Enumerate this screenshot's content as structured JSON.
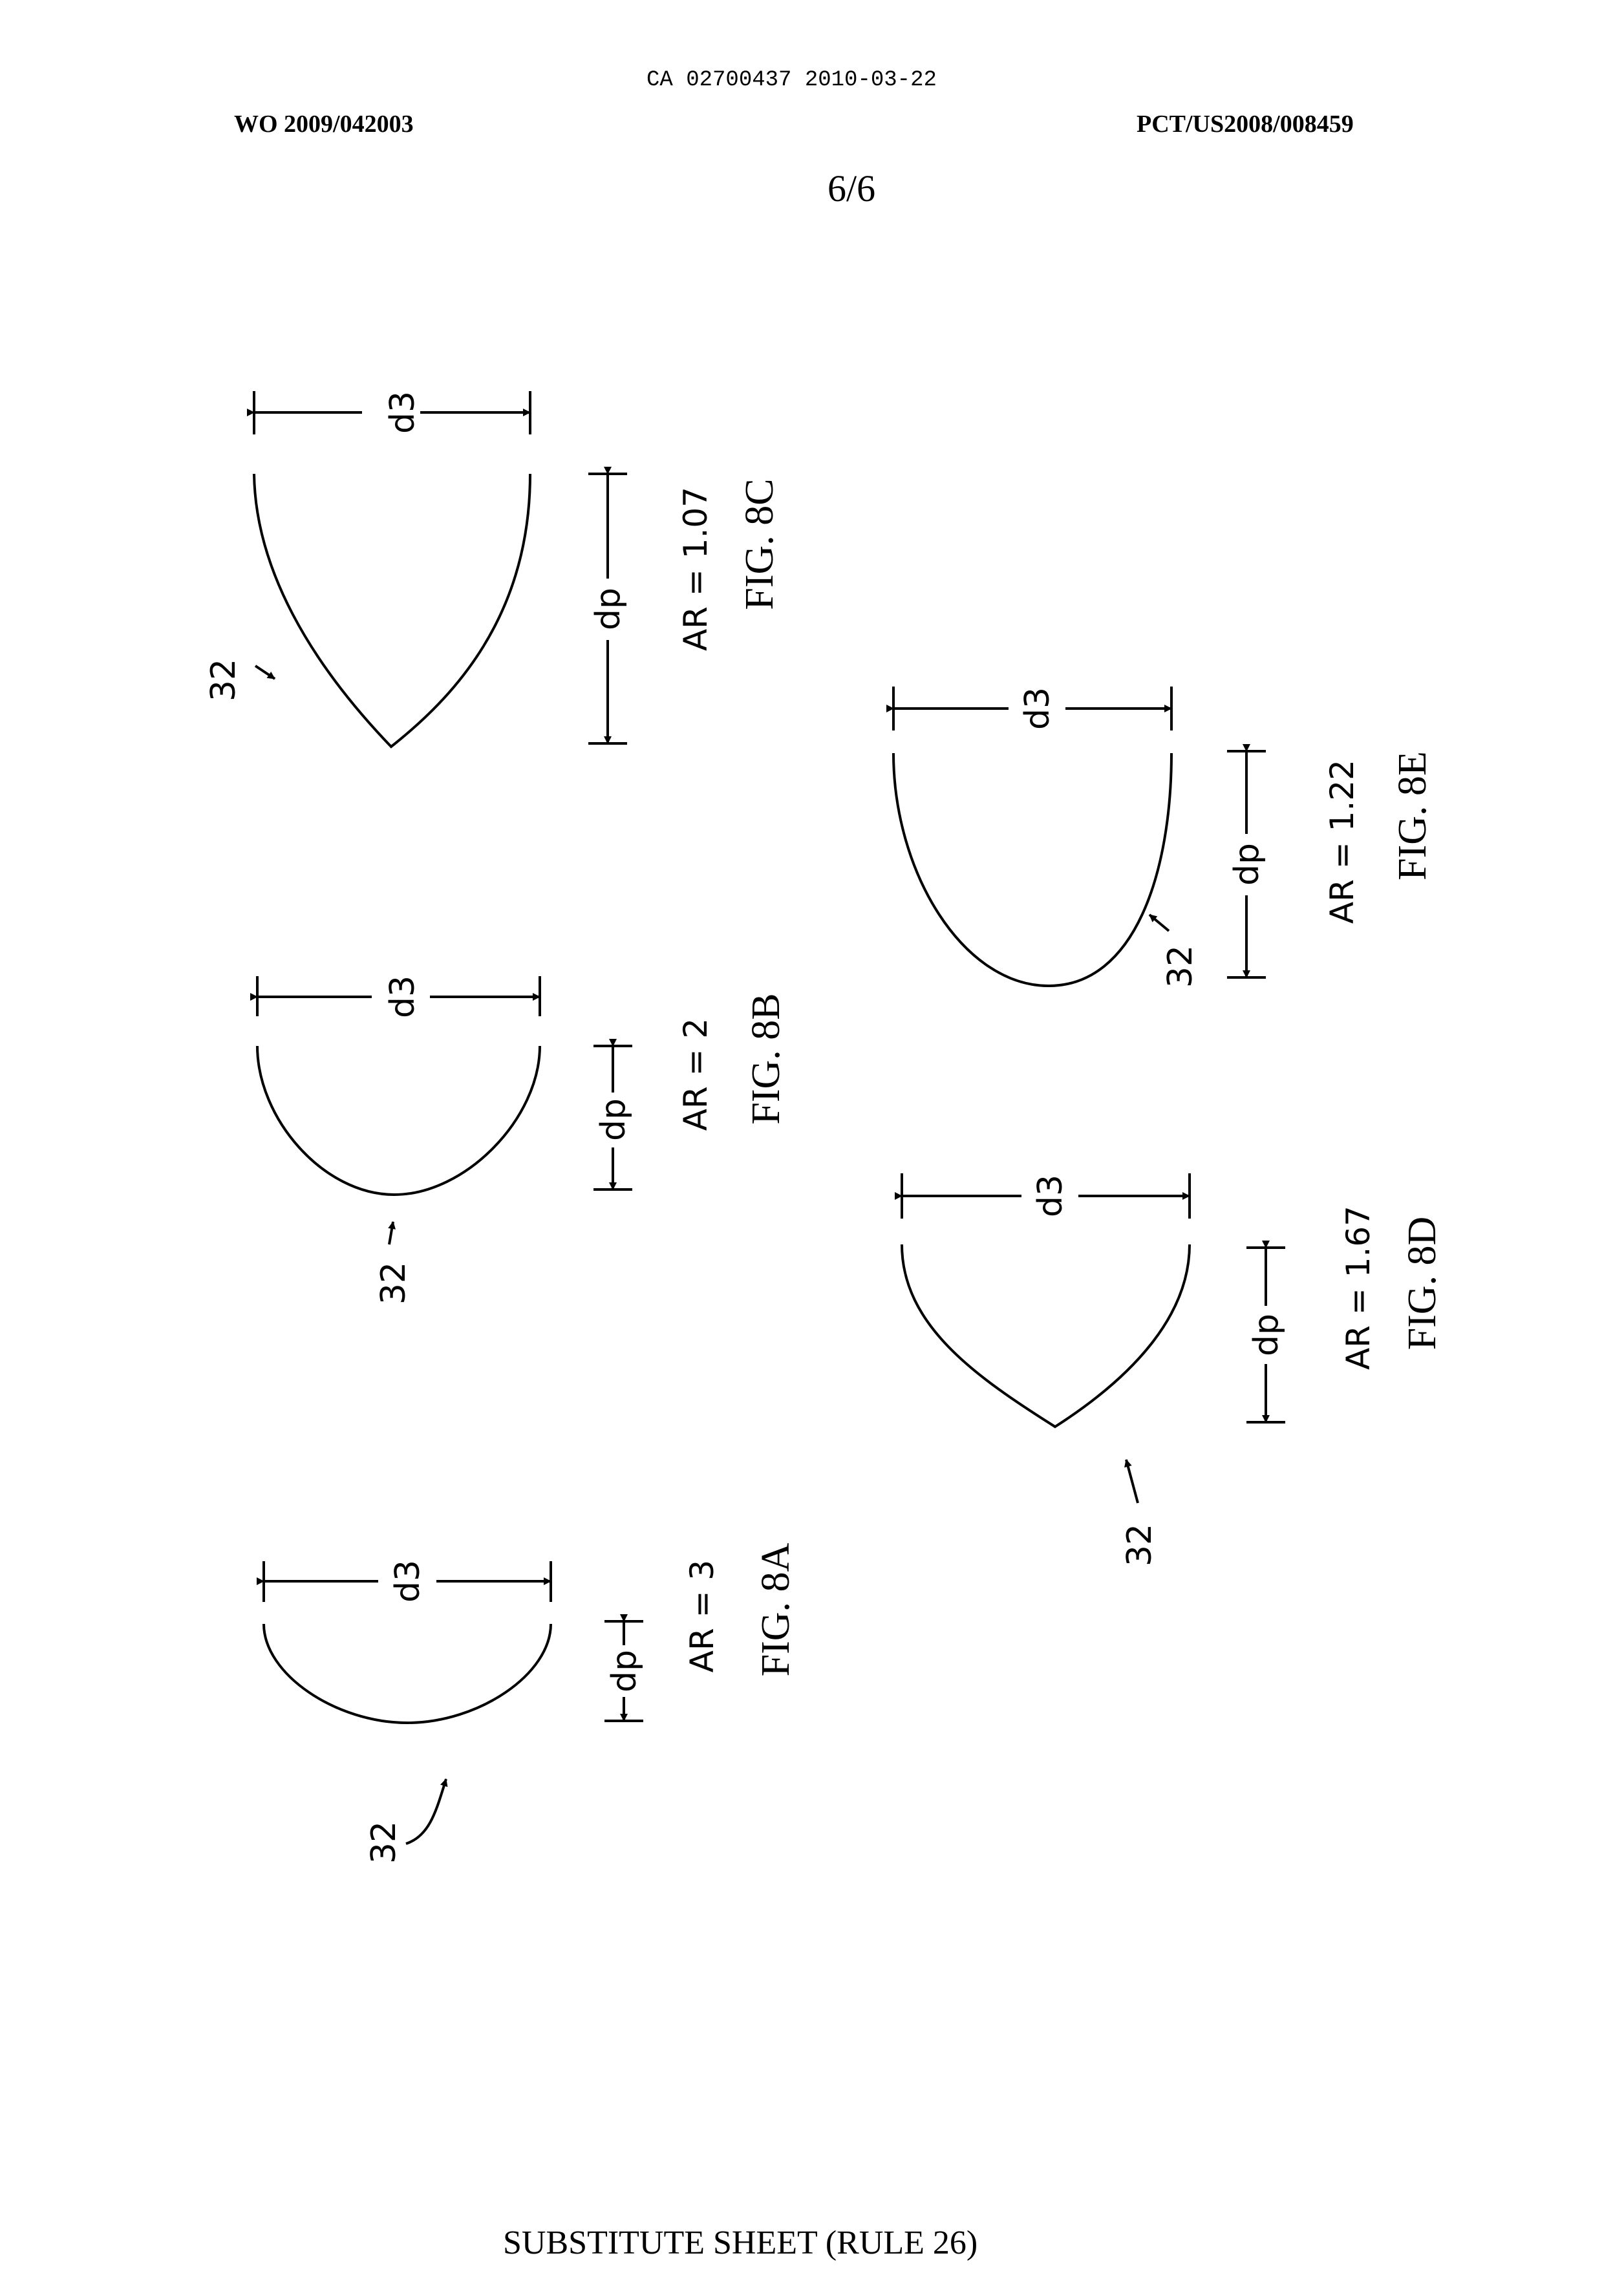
{
  "header": {
    "ca_number": "CA 02700437 2010-03-22",
    "wo_number": "WO 2009/042003",
    "pct_number": "PCT/US2008/008459",
    "sheet": "6/6"
  },
  "figures": [
    {
      "id": "8A",
      "title": "FIG. 8A",
      "ar": "AR = 3",
      "dim_width": "d3",
      "dim_depth": "dp",
      "ref": "32"
    },
    {
      "id": "8B",
      "title": "FIG. 8B",
      "ar": "AR = 2",
      "dim_width": "d3",
      "dim_depth": "dp",
      "ref": "32"
    },
    {
      "id": "8C",
      "title": "FIG. 8C",
      "ar": "AR = 1.07",
      "dim_width": "d3",
      "dim_depth": "dp",
      "ref": "32"
    },
    {
      "id": "8D",
      "title": "FIG. 8D",
      "ar": "AR = 1.67",
      "dim_width": "d3",
      "dim_depth": "dp",
      "ref": "32"
    },
    {
      "id": "8E",
      "title": "FIG. 8E",
      "ar": "AR = 1.22",
      "dim_width": "d3",
      "dim_depth": "dp",
      "ref": "32"
    }
  ],
  "footer": {
    "text": "SUBSTITUTE SHEET (RULE 26)"
  }
}
